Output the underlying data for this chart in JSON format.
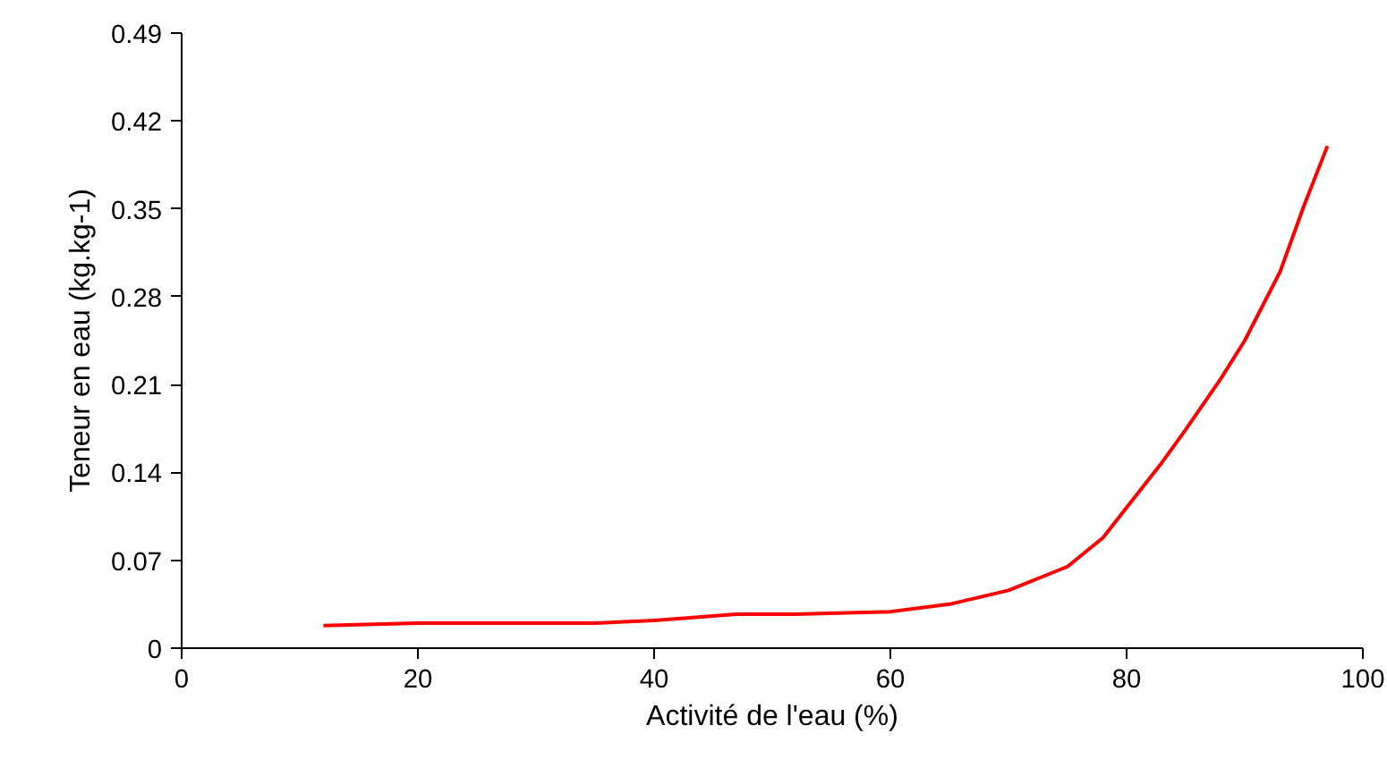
{
  "chart_data": {
    "type": "line",
    "xlabel": "Activité de l'eau (%)",
    "ylabel": "Teneur en eau (kg.kg-1)",
    "x": [
      12,
      20,
      28,
      35,
      40,
      44,
      47,
      52,
      60,
      65,
      70,
      75,
      78,
      80,
      83,
      85,
      88,
      90,
      93,
      95,
      97
    ],
    "series": [
      {
        "color": "#ff0000",
        "values": [
          0.018,
          0.02,
          0.02,
          0.02,
          0.022,
          0.025,
          0.027,
          0.027,
          0.029,
          0.035,
          0.046,
          0.065,
          0.088,
          0.112,
          0.148,
          0.174,
          0.215,
          0.245,
          0.3,
          0.352,
          0.4
        ]
      }
    ],
    "xlim": [
      0,
      100
    ],
    "xticks": [
      0,
      20,
      40,
      60,
      80,
      100
    ],
    "ylim": [
      0,
      0.49
    ],
    "yticks": [
      0,
      0.07,
      0.14,
      0.21,
      0.28,
      0.35,
      0.42,
      0.49
    ],
    "grid": false,
    "marker": "none",
    "line_style": "solid"
  }
}
